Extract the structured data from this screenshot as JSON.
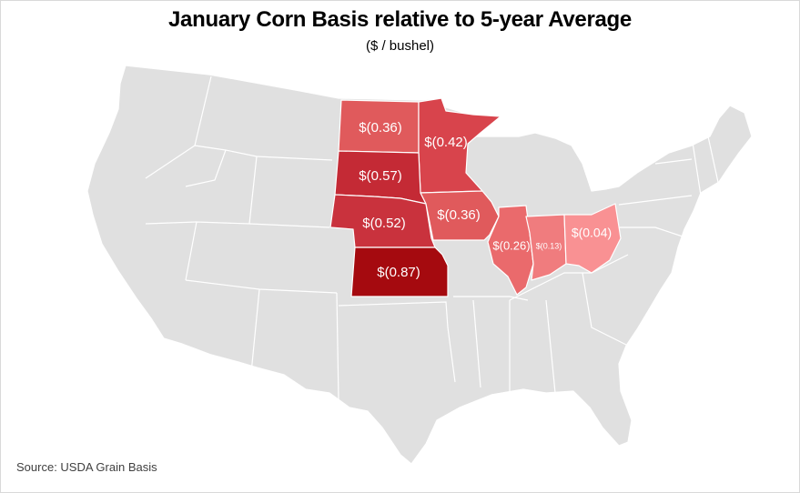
{
  "title": "January Corn Basis relative to 5-year Average",
  "subtitle": "($ / bushel)",
  "source": "Source: USDA Grain Basis",
  "colors": {
    "base_state": "#e0e0e0",
    "border": "#ffffff",
    "label": "#ffffff"
  },
  "chart_data": {
    "type": "choropleth",
    "region": "United States",
    "states": [
      {
        "id": "ND",
        "label": "$(0.36)",
        "value": -0.36,
        "color": "#e05a5c"
      },
      {
        "id": "MN",
        "label": "$(0.42)",
        "value": -0.42,
        "color": "#d8444c"
      },
      {
        "id": "SD",
        "label": "$(0.57)",
        "value": -0.57,
        "color": "#c42a35"
      },
      {
        "id": "NE",
        "label": "$(0.52)",
        "value": -0.52,
        "color": "#c9323d"
      },
      {
        "id": "IA",
        "label": "$(0.36)",
        "value": -0.36,
        "color": "#e05a5c"
      },
      {
        "id": "KS",
        "label": "$(0.87)",
        "value": -0.87,
        "color": "#a50a0f"
      },
      {
        "id": "IL",
        "label": "$(0.26)",
        "value": -0.26,
        "color": "#ea6a6c"
      },
      {
        "id": "IN",
        "label": "$(0.13)",
        "value": -0.13,
        "color": "#f07c7e"
      },
      {
        "id": "OH",
        "label": "$(0.04)",
        "value": -0.04,
        "color": "#f99193"
      }
    ]
  }
}
